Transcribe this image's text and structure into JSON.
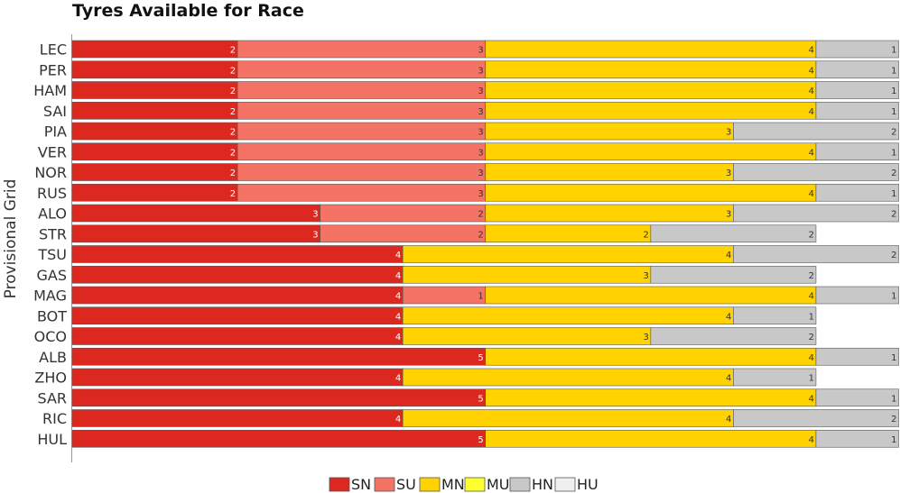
{
  "chart_data": {
    "type": "bar",
    "orientation": "horizontal-stacked",
    "title": "Tyres Available for Race",
    "ylabel": "Provisional Grid",
    "xlabel": "",
    "categories": [
      "LEC",
      "PER",
      "HAM",
      "SAI",
      "PIA",
      "VER",
      "NOR",
      "RUS",
      "ALO",
      "STR",
      "TSU",
      "GAS",
      "MAG",
      "BOT",
      "OCO",
      "ALB",
      "ZHO",
      "SAR",
      "RIC",
      "HUL"
    ],
    "series": [
      {
        "name": "SN",
        "color": "#dc281e",
        "label_color": "#ffffff",
        "values": [
          2,
          2,
          2,
          2,
          2,
          2,
          2,
          2,
          3,
          3,
          4,
          4,
          4,
          4,
          4,
          5,
          4,
          5,
          4,
          5
        ]
      },
      {
        "name": "SU",
        "color": "#f47365",
        "label_color": "#333333",
        "values": [
          3,
          3,
          3,
          3,
          3,
          3,
          3,
          3,
          2,
          2,
          0,
          0,
          1,
          0,
          0,
          0,
          0,
          0,
          0,
          0
        ]
      },
      {
        "name": "MN",
        "color": "#ffd200",
        "label_color": "#333333",
        "values": [
          4,
          4,
          4,
          4,
          3,
          4,
          3,
          4,
          3,
          2,
          4,
          3,
          4,
          4,
          3,
          4,
          4,
          4,
          4,
          4
        ]
      },
      {
        "name": "MU",
        "color": "#ffff30",
        "label_color": "#333333",
        "values": [
          0,
          0,
          0,
          0,
          0,
          0,
          0,
          0,
          0,
          0,
          0,
          0,
          0,
          0,
          0,
          0,
          0,
          0,
          0,
          0
        ]
      },
      {
        "name": "HN",
        "color": "#c8c8c8",
        "label_color": "#333333",
        "values": [
          1,
          1,
          1,
          1,
          2,
          1,
          2,
          1,
          2,
          2,
          2,
          2,
          1,
          1,
          2,
          1,
          1,
          1,
          2,
          1
        ]
      },
      {
        "name": "HU",
        "color": "#f0f0f0",
        "label_color": "#333333",
        "values": [
          0,
          0,
          0,
          0,
          0,
          0,
          0,
          0,
          0,
          0,
          0,
          0,
          0,
          0,
          0,
          0,
          0,
          0,
          0,
          0
        ]
      }
    ],
    "xlim": [
      0,
      10
    ],
    "legend_position": "bottom-center",
    "grid": false
  }
}
